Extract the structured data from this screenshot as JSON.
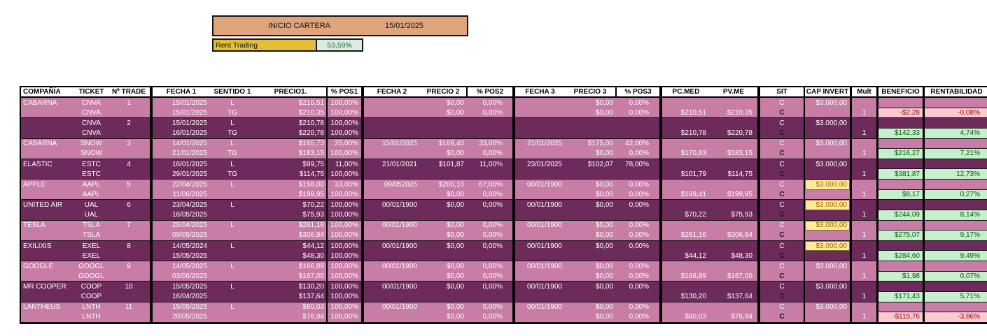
{
  "banner": {
    "title": "INICIO CARTERA",
    "date": "15/01/2025"
  },
  "rent": {
    "label": "Rent Trading",
    "value": "53,59%"
  },
  "colors": {
    "row_pink": "#C77DA5",
    "row_dark_purple": "#6D2B5C",
    "banner_tan": "#DFA47C",
    "rent_gold": "#E3BD33",
    "rent_green_bg": "#D8EDDD",
    "rent_green_text": "#1E6B41",
    "profit_bg": "#C6EFCE",
    "profit_text": "#006100",
    "loss_bg": "#FBCAD1",
    "loss_text": "#9C0006",
    "cap_highlight_bg": "#FFEB9C",
    "cap_highlight_text": "#9C6500"
  },
  "table": {
    "headers": [
      "COMPAÑÍA",
      "TICKET",
      "Nº TRADE",
      "FECHA 1",
      "SENTIDO 1",
      "PRECIO1.",
      "% POS1",
      "FECHA 2",
      "PRECIO 2",
      "% POS2",
      "FECHA 3",
      "PRECIO 3",
      "% POS3",
      "PC.MED",
      "PV.ME",
      "SIT",
      "CAP INVERT",
      "Mult",
      "BENEFICIO",
      "RENTABILIDAD"
    ],
    "rows": [
      {
        "shade": "pink",
        "co": "CABARNA",
        "tk": "CNVA",
        "tr": "1",
        "f1": "15/01/2025",
        "s1": "L",
        "p1": "$210,51",
        "q1": "100,00%",
        "f2": "",
        "p2": "$0,00",
        "q2": "0,00%",
        "f3": "",
        "p3": "$0,00",
        "q3": "0,00%",
        "pm": "",
        "pv": "",
        "sit": "C",
        "sitBold": false,
        "cap": "$3.000,00",
        "capStyle": "plain",
        "mu": "",
        "ben": "",
        "ren": "",
        "resStyle": "",
        "pairEnd": false
      },
      {
        "shade": "pink",
        "co": "",
        "tk": "CNVA",
        "tr": "",
        "f1": "15/01/2025",
        "s1": "TG",
        "p1": "$210,35",
        "q1": "100,00%",
        "f2": "",
        "p2": "$0,00",
        "q2": "0,00%",
        "f3": "",
        "p3": "$0,00",
        "q3": "0,00%",
        "pm": "$210,51",
        "pv": "$210,35",
        "sit": "C",
        "sitBold": true,
        "cap": "",
        "capStyle": "",
        "mu": "1",
        "ben": "-$2,28",
        "ren": "-0,08%",
        "resStyle": "red",
        "pairEnd": true
      },
      {
        "shade": "dark",
        "co": "",
        "tk": "CNVA",
        "tr": "2",
        "f1": "15/01/2025",
        "s1": "L",
        "p1": "$210,78",
        "q1": "100,00%",
        "f2": "",
        "p2": "",
        "q2": "",
        "f3": "",
        "p3": "",
        "q3": "",
        "pm": "",
        "pv": "",
        "sit": "C",
        "sitBold": false,
        "cap": "$3.000,00",
        "capStyle": "plain",
        "mu": "",
        "ben": "",
        "ren": "",
        "resStyle": "",
        "pairEnd": false
      },
      {
        "shade": "dark",
        "co": "",
        "tk": "CNVA",
        "tr": "",
        "f1": "16/01/2025",
        "s1": "TG",
        "p1": "$220,78",
        "q1": "100,00%",
        "f2": "",
        "p2": "",
        "q2": "",
        "f3": "",
        "p3": "",
        "q3": "",
        "pm": "$210,78",
        "pv": "$220,78",
        "sit": "C",
        "sitBold": true,
        "cap": "",
        "capStyle": "",
        "mu": "1",
        "ben": "$142,33",
        "ren": "4,74%",
        "resStyle": "green",
        "pairEnd": true
      },
      {
        "shade": "pink",
        "co": "CABARNA",
        "tk": "SNOW",
        "tr": "3",
        "f1": "14/01/2025",
        "s1": "L",
        "p1": "$165,73",
        "q1": "25,00%",
        "f2": "15/01/2025",
        "p2": "$169,40",
        "q2": "33,00%",
        "f3": "21/01/2025",
        "p3": "$175,00",
        "q3": "42,00%",
        "pm": "",
        "pv": "",
        "sit": "C",
        "sitBold": false,
        "cap": "$3.000,00",
        "capStyle": "plain",
        "mu": "",
        "ben": "",
        "ren": "",
        "resStyle": "",
        "pairEnd": false
      },
      {
        "shade": "pink",
        "co": "",
        "tk": "SNOW",
        "tr": "",
        "f1": "21/01/2025",
        "s1": "TG",
        "p1": "$183,15",
        "q1": "100,00%",
        "f2": "",
        "p2": "$0,00",
        "q2": "0,00%",
        "f3": "",
        "p3": "$0,00",
        "q3": "0,00%",
        "pm": "$170,83",
        "pv": "$183,15",
        "sit": "C",
        "sitBold": true,
        "cap": "",
        "capStyle": "",
        "mu": "1",
        "ben": "$216,27",
        "ren": "7,21%",
        "resStyle": "green",
        "pairEnd": true
      },
      {
        "shade": "dark",
        "co": "ELASTIC",
        "tk": "ESTC",
        "tr": "4",
        "f1": "16/01/2025",
        "s1": "L",
        "p1": "$99,75",
        "q1": "11,00%",
        "f2": "21/01/2021",
        "p2": "$101,87",
        "q2": "11,00%",
        "f3": "23/01/2025",
        "p3": "$102,07",
        "q3": "78,00%",
        "pm": "",
        "pv": "",
        "sit": "C",
        "sitBold": false,
        "cap": "$3.000,00",
        "capStyle": "plain",
        "mu": "",
        "ben": "",
        "ren": "",
        "resStyle": "",
        "pairEnd": false
      },
      {
        "shade": "dark",
        "co": "",
        "tk": "ESTC",
        "tr": "",
        "f1": "29/01/2025",
        "s1": "TG",
        "p1": "$114,75",
        "q1": "100,00%",
        "f2": "",
        "p2": "",
        "q2": "",
        "f3": "",
        "p3": "",
        "q3": "",
        "pm": "$101,79",
        "pv": "$114,75",
        "sit": "C",
        "sitBold": true,
        "cap": "",
        "capStyle": "",
        "mu": "1",
        "ben": "$381,87",
        "ren": "12,73%",
        "resStyle": "green",
        "pairEnd": true
      },
      {
        "shade": "pink",
        "co": "APPLE",
        "tk": "AAPL",
        "tr": "5",
        "f1": "22/04/2025",
        "s1": "L",
        "p1": "$198,00",
        "q1": "33,00%",
        "f2": "09/052025",
        "p2": "$200,10",
        "q2": "67,00%",
        "f3": "00/01/1900",
        "p3": "$0,00",
        "q3": "0,00%",
        "pm": "",
        "pv": "",
        "sit": "C",
        "sitBold": false,
        "cap": "$3.000,00",
        "capStyle": "yellow",
        "mu": "",
        "ben": "",
        "ren": "",
        "resStyle": "",
        "pairEnd": false
      },
      {
        "shade": "pink",
        "co": "",
        "tk": "AAPL",
        "tr": "",
        "f1": "11/06/2025",
        "s1": "",
        "p1": "$199,95",
        "q1": "100,00%",
        "f2": "",
        "p2": "$0,00",
        "q2": "0,00%",
        "f3": "",
        "p3": "$0,00",
        "q3": "0,00%",
        "pm": "$199,41",
        "pv": "$199,95",
        "sit": "C",
        "sitBold": true,
        "cap": "",
        "capStyle": "",
        "mu": "1",
        "ben": "$8,17",
        "ren": "0,27%",
        "resStyle": "green",
        "pairEnd": true
      },
      {
        "shade": "dark",
        "co": "UNITED AIR",
        "tk": "UAL",
        "tr": "6",
        "f1": "23/04/2025",
        "s1": "L",
        "p1": "$70,22",
        "q1": "100,00%",
        "f2": "00/01/1900",
        "p2": "$0,00",
        "q2": "0,00%",
        "f3": "00/01/1900",
        "p3": "$0,00",
        "q3": "0,00%",
        "pm": "",
        "pv": "",
        "sit": "C",
        "sitBold": false,
        "cap": "$3.000,00",
        "capStyle": "yellow",
        "mu": "",
        "ben": "",
        "ren": "",
        "resStyle": "",
        "pairEnd": false
      },
      {
        "shade": "dark",
        "co": "",
        "tk": "UAL",
        "tr": "",
        "f1": "16/05/2025",
        "s1": "",
        "p1": "$75,93",
        "q1": "100,00%",
        "f2": "",
        "p2": "",
        "q2": "",
        "f3": "",
        "p3": "",
        "q3": "",
        "pm": "$70,22",
        "pv": "$75,93",
        "sit": "C",
        "sitBold": true,
        "cap": "",
        "capStyle": "",
        "mu": "1",
        "ben": "$244,09",
        "ren": "8,14%",
        "resStyle": "green",
        "pairEnd": true
      },
      {
        "shade": "pink",
        "co": "TESLA",
        "tk": "TSLA",
        "tr": "7",
        "f1": "25/04/2025",
        "s1": "L",
        "p1": "$281,16",
        "q1": "100,00%",
        "f2": "00/01/1900",
        "p2": "$0,00",
        "q2": "0,00%",
        "f3": "00/01/1900",
        "p3": "$0,00",
        "q3": "0,00%",
        "pm": "",
        "pv": "",
        "sit": "C",
        "sitBold": false,
        "cap": "$3.000,00",
        "capStyle": "yellow",
        "mu": "",
        "ben": "",
        "ren": "",
        "resStyle": "",
        "pairEnd": false
      },
      {
        "shade": "pink",
        "co": "",
        "tk": "TSLA",
        "tr": "",
        "f1": "09/05/2025",
        "s1": "",
        "p1": "$306,94",
        "q1": "100,00%",
        "f2": "",
        "p2": "$0,00",
        "q2": "0,00%",
        "f3": "",
        "p3": "$0,00",
        "q3": "0,00%",
        "pm": "$281,16",
        "pv": "$306,94",
        "sit": "C",
        "sitBold": true,
        "cap": "",
        "capStyle": "",
        "mu": "1",
        "ben": "$275,07",
        "ren": "9,17%",
        "resStyle": "green",
        "pairEnd": true
      },
      {
        "shade": "dark",
        "co": "EXILIXIS",
        "tk": "EXEL",
        "tr": "8",
        "f1": "14/05/2024",
        "s1": "L",
        "p1": "$44,12",
        "q1": "100,00%",
        "f2": "00/01/1900",
        "p2": "$0,00",
        "q2": "0,00%",
        "f3": "00/01/1900",
        "p3": "$0,00",
        "q3": "0,00%",
        "pm": "",
        "pv": "",
        "sit": "C",
        "sitBold": false,
        "cap": "$3.000,00",
        "capStyle": "yellow",
        "mu": "",
        "ben": "",
        "ren": "",
        "resStyle": "",
        "pairEnd": false
      },
      {
        "shade": "dark",
        "co": "",
        "tk": "EXEL",
        "tr": "",
        "f1": "15/05/2025",
        "s1": "",
        "p1": "$48,30",
        "q1": "100,00%",
        "f2": "",
        "p2": "",
        "q2": "",
        "f3": "",
        "p3": "",
        "q3": "",
        "pm": "$44,12",
        "pv": "$48,30",
        "sit": "C",
        "sitBold": true,
        "cap": "",
        "capStyle": "",
        "mu": "1",
        "ben": "$284,60",
        "ren": "9,49%",
        "resStyle": "green",
        "pairEnd": true
      },
      {
        "shade": "pink",
        "co": "GOOGLE",
        "tk": "GOOGL",
        "tr": "9",
        "f1": "14/05/2025",
        "s1": "L",
        "p1": "$166,89",
        "q1": "100,00%",
        "f2": "00/01/1900",
        "p2": "$0,00",
        "q2": "0,00%",
        "f3": "00/01/1900",
        "p3": "$0,00",
        "q3": "0,00%",
        "pm": "",
        "pv": "",
        "sit": "C",
        "sitBold": false,
        "cap": "$3.000,00",
        "capStyle": "plain",
        "mu": "",
        "ben": "",
        "ren": "",
        "resStyle": "",
        "pairEnd": false
      },
      {
        "shade": "pink",
        "co": "",
        "tk": "GOOGL",
        "tr": "",
        "f1": "03/06/2025",
        "s1": "",
        "p1": "$167,00",
        "q1": "100,00%",
        "f2": "",
        "p2": "$0,00",
        "q2": "0,00%",
        "f3": "",
        "p3": "$0,00",
        "q3": "0,00%",
        "pm": "$166,89",
        "pv": "$167,00",
        "sit": "C",
        "sitBold": true,
        "cap": "",
        "capStyle": "",
        "mu": "1",
        "ben": "$1,98",
        "ren": "0,07%",
        "resStyle": "green",
        "pairEnd": true
      },
      {
        "shade": "dark",
        "co": "MR COOPER",
        "tk": "COOP",
        "tr": "10",
        "f1": "15/05/2025",
        "s1": "L",
        "p1": "$130,20",
        "q1": "100,00%",
        "f2": "00/01/1900",
        "p2": "$0,00",
        "q2": "0,00%",
        "f3": "00/01/1900",
        "p3": "$0,00",
        "q3": "0,00%",
        "pm": "",
        "pv": "",
        "sit": "C",
        "sitBold": false,
        "cap": "$3.000,00",
        "capStyle": "plain",
        "mu": "",
        "ben": "",
        "ren": "",
        "resStyle": "",
        "pairEnd": false
      },
      {
        "shade": "dark",
        "co": "",
        "tk": "COOP",
        "tr": "",
        "f1": "16/04/2025",
        "s1": "",
        "p1": "$137,64",
        "q1": "100,00%",
        "f2": "",
        "p2": "",
        "q2": "",
        "f3": "",
        "p3": "",
        "q3": "",
        "pm": "$130,20",
        "pv": "$137,64",
        "sit": "C",
        "sitBold": true,
        "cap": "",
        "capStyle": "",
        "mu": "1",
        "ben": "$171,43",
        "ren": "5,71%",
        "resStyle": "green",
        "pairEnd": true
      },
      {
        "shade": "pink",
        "co": "LANTHEUS",
        "tk": "LNTH",
        "tr": "11",
        "f1": "15/05/2025",
        "s1": "L",
        "p1": "$80,03",
        "q1": "100,00%",
        "f2": "00/01/1900",
        "p2": "$0,00",
        "q2": "0,00%",
        "f3": "00/01/1900",
        "p3": "$0,00",
        "q3": "0,00%",
        "pm": "",
        "pv": "",
        "sit": "C",
        "sitBold": false,
        "cap": "$3.000,00",
        "capStyle": "plain",
        "mu": "",
        "ben": "",
        "ren": "",
        "resStyle": "",
        "pairEnd": false
      },
      {
        "shade": "pink",
        "co": "",
        "tk": "LNTH",
        "tr": "",
        "f1": "20/05/2025",
        "s1": "",
        "p1": "$76,94",
        "q1": "100,00%",
        "f2": "",
        "p2": "$0,00",
        "q2": "0,00%",
        "f3": "",
        "p3": "$0,00",
        "q3": "0,00%",
        "pm": "$80,03",
        "pv": "$76,94",
        "sit": "C",
        "sitBold": true,
        "cap": "",
        "capStyle": "",
        "mu": "1",
        "ben": "-$115,76",
        "ren": "-3,86%",
        "resStyle": "red",
        "pairEnd": true
      }
    ]
  }
}
